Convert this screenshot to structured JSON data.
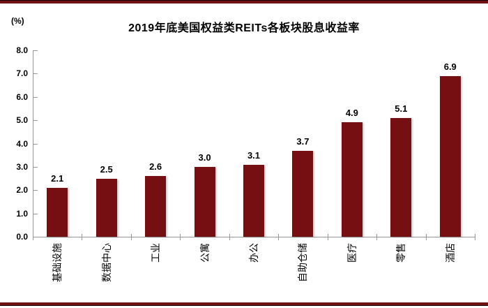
{
  "page": {
    "background_color": "#ffffff",
    "rule_color": "#701114"
  },
  "chart_data": {
    "type": "bar",
    "title": "2019年底美国权益类REITs各板块股息收益率",
    "xlabel": "",
    "ylabel": "(%)",
    "categories": [
      "基础设施",
      "数据中心",
      "工业",
      "公寓",
      "办公",
      "自助仓储",
      "医疗",
      "零售",
      "酒店"
    ],
    "values": [
      2.1,
      2.5,
      2.6,
      3.0,
      3.1,
      3.7,
      4.9,
      5.1,
      6.9
    ],
    "data_labels": [
      "2.1",
      "2.5",
      "2.6",
      "3.0",
      "3.1",
      "3.7",
      "4.9",
      "5.1",
      "6.9"
    ],
    "ylim": [
      0.0,
      8.0
    ],
    "ytick_step": 1.0,
    "ytick_labels": [
      "0.0",
      "1.0",
      "2.0",
      "3.0",
      "4.0",
      "5.0",
      "6.0",
      "7.0",
      "8.0"
    ],
    "grid": false,
    "legend": "none",
    "x_label_rotation_deg": 90,
    "bar_color": "#750F12",
    "axis_color": "#969696",
    "text_color": "#000000"
  }
}
